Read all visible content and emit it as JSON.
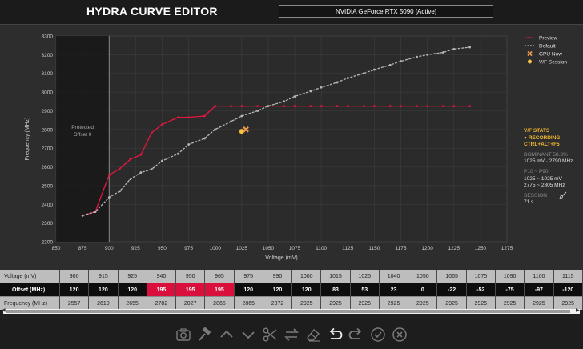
{
  "app": {
    "title": "HYDRA CURVE EDITOR"
  },
  "gpu_selector": {
    "value": "NVIDIA GeForce RTX 5090  [Active]"
  },
  "chart_data": {
    "type": "line",
    "xlabel": "Voltage (mV)",
    "ylabel": "Frequency (MHz)",
    "xlim": [
      850,
      1275
    ],
    "ylim": [
      2200,
      3300
    ],
    "xticks": [
      850,
      875,
      900,
      925,
      950,
      975,
      1000,
      1025,
      1050,
      1075,
      1100,
      1125,
      1150,
      1175,
      1200,
      1225,
      1250,
      1275
    ],
    "yticks": [
      2200,
      2300,
      2400,
      2500,
      2600,
      2700,
      2800,
      2900,
      3000,
      3100,
      3200,
      3300
    ],
    "grid": true,
    "legend_position": "top-right",
    "protected_region": {
      "label_line1": "Protected",
      "label_line2": "Offset 0",
      "x_max": 900
    },
    "legend": [
      "Preview",
      "Default",
      "GPU Now",
      "V/F Session"
    ],
    "series": [
      {
        "name": "Preview",
        "color": "#e8163f",
        "x": [
          875,
          887,
          900,
          910,
          920,
          930,
          940,
          950,
          965,
          975,
          990,
          1000,
          1015,
          1025,
          1040,
          1050,
          1065,
          1075,
          1090,
          1100,
          1115,
          1125,
          1140,
          1150,
          1165,
          1175,
          1190,
          1200,
          1215,
          1225,
          1240
        ],
        "y": [
          2340,
          2360,
          2557,
          2590,
          2640,
          2665,
          2782,
          2827,
          2865,
          2865,
          2872,
          2925,
          2925,
          2925,
          2925,
          2925,
          2925,
          2925,
          2925,
          2925,
          2925,
          2925,
          2925,
          2925,
          2925,
          2925,
          2925,
          2925,
          2925,
          2925,
          2925
        ]
      },
      {
        "name": "Default",
        "color": "#b8b8b8",
        "x": [
          875,
          887,
          900,
          910,
          920,
          930,
          940,
          950,
          965,
          975,
          990,
          1000,
          1015,
          1025,
          1040,
          1050,
          1065,
          1075,
          1090,
          1100,
          1115,
          1125,
          1140,
          1150,
          1165,
          1175,
          1190,
          1200,
          1215,
          1225,
          1240
        ],
        "y": [
          2340,
          2360,
          2437,
          2470,
          2535,
          2570,
          2587,
          2632,
          2670,
          2720,
          2752,
          2800,
          2843,
          2872,
          2900,
          2925,
          2950,
          2977,
          3005,
          3025,
          3052,
          3075,
          3100,
          3120,
          3145,
          3165,
          3188,
          3200,
          3212,
          3230,
          3240
        ]
      }
    ],
    "markers": {
      "gpu_now": {
        "x": 1029,
        "y": 2800
      },
      "vf_session": {
        "x": 1025,
        "y": 2790
      }
    }
  },
  "stats": {
    "title": "V/F STATS",
    "recording": "● RECORDING",
    "shortcut": "CTRL+ALT+F5",
    "dominant_label": "DOMINANT",
    "dominant_pct": "58.3%",
    "dominant_value": "1025 mV · 2790 MHz",
    "p_label": "P10 ~ P90",
    "p_voltage": "1025 ~ 1025 mV",
    "p_freq": "2775 ~ 2805 MHz",
    "session_label": "SESSION",
    "session_value": "71 s",
    "broom_icon": "broom-icon"
  },
  "table": {
    "voltage_label": "Voltage (mV)",
    "offset_label": "Offset (MHz)",
    "frequency_label": "Frequency (MHz)",
    "voltage": [
      "900",
      "915",
      "925",
      "940",
      "950",
      "965",
      "975",
      "990",
      "1000",
      "1015",
      "1025",
      "1040",
      "1050",
      "1065",
      "1075",
      "1090",
      "1100",
      "1115"
    ],
    "offset": [
      "120",
      "120",
      "120",
      "195",
      "195",
      "195",
      "120",
      "120",
      "120",
      "83",
      "53",
      "23",
      "0",
      "-22",
      "-52",
      "-75",
      "-97",
      "-120"
    ],
    "offset_highlight": [
      false,
      false,
      false,
      true,
      true,
      true,
      false,
      false,
      false,
      false,
      false,
      false,
      false,
      false,
      false,
      false,
      false,
      false
    ],
    "frequency": [
      "2557",
      "2610",
      "2655",
      "2782",
      "2827",
      "2865",
      "2865",
      "2872",
      "2925",
      "2925",
      "2925",
      "2925",
      "2925",
      "2925",
      "2925",
      "2925",
      "2925",
      "2925"
    ]
  },
  "toolbar": {
    "icons": [
      "screenshot-icon",
      "hammer-icon",
      "chevron-up-icon",
      "chevron-down-icon",
      "scissors-icon",
      "swap-icon",
      "eraser-icon",
      "undo-icon",
      "redo-icon",
      "apply-check-icon",
      "close-icon"
    ]
  }
}
